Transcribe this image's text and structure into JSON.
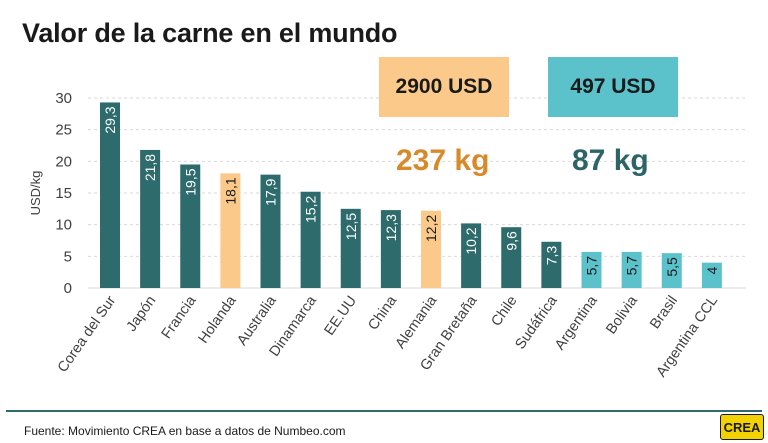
{
  "title": "Valor de la carne en el mundo",
  "callouts": [
    {
      "price": "2900 USD",
      "weight": "237 kg",
      "box_color": "#FBC98A",
      "weight_color": "#D88A2A"
    },
    {
      "price": "497 USD",
      "weight": "87 kg",
      "box_color": "#5BC1CB",
      "weight_color": "#2C6467"
    }
  ],
  "source": "Fuente: Movimiento CREA en base a datos de Numbeo.com",
  "logo_text": "CREA",
  "colors": {
    "teal": "#2E6B6C",
    "orange": "#FBC98A",
    "light_blue": "#5BC1CB",
    "footer_line": "#2E6B6C",
    "logo_bg": "#F2D200"
  },
  "chart_data": {
    "type": "bar",
    "title": "",
    "ylabel": "USD/kg",
    "xlabel": "",
    "ylim": [
      0,
      30
    ],
    "yticks": [
      0,
      5,
      10,
      15,
      20,
      25,
      30
    ],
    "grid": true,
    "categories": [
      "Corea del Sur",
      "Japón",
      "Francia",
      "Holanda",
      "Australia",
      "Dinamarca",
      "EE.UU",
      "China",
      "Alemania",
      "Gran Bretaña",
      "Chile",
      "Sudáfrica",
      "Argentina",
      "Bolivia",
      "Brasil",
      "Argentina CCL"
    ],
    "values": [
      29.3,
      21.8,
      19.5,
      18.1,
      17.9,
      15.2,
      12.5,
      12.3,
      12.2,
      10.2,
      9.6,
      7.3,
      5.7,
      5.7,
      5.5,
      4
    ],
    "value_labels": [
      "29,3",
      "21,8",
      "19,5",
      "18,1",
      "17,9",
      "15,2",
      "12,5",
      "12,3",
      "12,2",
      "10,2",
      "9,6",
      "7,3",
      "5,7",
      "5,7",
      "5,5",
      "4"
    ],
    "bar_colors": [
      "teal",
      "teal",
      "teal",
      "orange",
      "teal",
      "teal",
      "teal",
      "teal",
      "orange",
      "teal",
      "teal",
      "teal",
      "light_blue",
      "light_blue",
      "light_blue",
      "light_blue"
    ]
  }
}
